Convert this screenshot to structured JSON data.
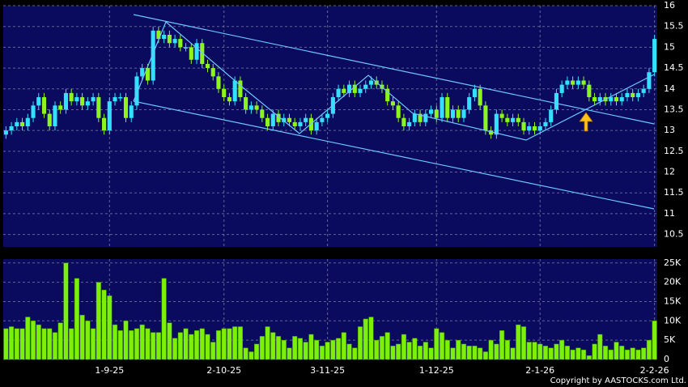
{
  "chart_data": [
    {
      "type": "candlestick",
      "up_color": "#33e0ff",
      "down_color": "#8cf51e",
      "grid": true,
      "categories": [
        null,
        null,
        null,
        null,
        null,
        null,
        null,
        null,
        null,
        null,
        null,
        null,
        null,
        null,
        null,
        null,
        null,
        null,
        null,
        "1-9-25",
        null,
        null,
        null,
        null,
        null,
        null,
        null,
        null,
        null,
        null,
        null,
        null,
        null,
        null,
        null,
        null,
        null,
        null,
        null,
        null,
        "2-10-25",
        null,
        null,
        null,
        null,
        null,
        null,
        null,
        null,
        null,
        null,
        null,
        null,
        null,
        null,
        null,
        null,
        null,
        null,
        "3-11-25",
        null,
        null,
        null,
        null,
        null,
        null,
        null,
        null,
        null,
        null,
        null,
        null,
        null,
        null,
        null,
        null,
        null,
        null,
        null,
        "1-12-25",
        null,
        null,
        null,
        null,
        null,
        null,
        null,
        null,
        null,
        null,
        null,
        null,
        null,
        null,
        null,
        null,
        null,
        null,
        "2-1-26",
        null,
        null,
        null,
        null,
        null,
        null,
        null,
        null,
        null,
        null,
        null,
        null,
        null,
        null,
        null,
        null,
        null,
        null,
        null,
        null,
        "2-2-26"
      ],
      "open": [
        12.9,
        13.0,
        13.1,
        13.2,
        13.1,
        13.3,
        13.6,
        13.8,
        13.4,
        13.1,
        13.6,
        13.5,
        13.9,
        13.7,
        13.8,
        13.6,
        13.7,
        13.8,
        13.3,
        13.0,
        13.7,
        13.8,
        13.8,
        13.3,
        13.6,
        14.3,
        14.5,
        14.2,
        15.4,
        15.2,
        15.3,
        15.1,
        15.2,
        15.0,
        15.0,
        14.7,
        15.1,
        14.6,
        14.5,
        14.3,
        14.0,
        13.8,
        13.7,
        14.2,
        13.8,
        13.5,
        13.6,
        13.5,
        13.3,
        13.1,
        13.4,
        13.2,
        13.3,
        13.2,
        13.1,
        13.2,
        13.3,
        13.0,
        13.2,
        13.3,
        13.4,
        13.8,
        14.0,
        13.9,
        14.1,
        13.9,
        14.0,
        14.1,
        14.2,
        14.1,
        14.0,
        13.7,
        13.6,
        13.3,
        13.1,
        13.2,
        13.4,
        13.2,
        13.4,
        13.5,
        13.3,
        13.8,
        13.3,
        13.5,
        13.3,
        13.5,
        13.8,
        14.0,
        13.6,
        13.0,
        12.9,
        13.4,
        13.3,
        13.2,
        13.3,
        13.2,
        13.0,
        13.1,
        13.0,
        13.1,
        13.2,
        13.5,
        13.9,
        14.1,
        14.2,
        14.1,
        14.2,
        14.1,
        13.8,
        13.7,
        13.8,
        13.7,
        13.8,
        13.7,
        13.8,
        13.9,
        13.8,
        13.9,
        14.0,
        14.4
      ],
      "high": [
        13.1,
        13.2,
        13.3,
        13.3,
        13.4,
        13.7,
        13.9,
        13.9,
        13.5,
        13.7,
        13.7,
        14.0,
        14.0,
        13.9,
        13.9,
        13.8,
        13.9,
        13.9,
        13.4,
        13.8,
        13.9,
        13.9,
        13.9,
        13.7,
        14.4,
        14.6,
        14.6,
        15.5,
        15.5,
        15.4,
        15.4,
        15.3,
        15.3,
        15.1,
        15.1,
        15.2,
        15.2,
        14.7,
        14.6,
        14.4,
        14.1,
        13.9,
        14.3,
        14.3,
        13.9,
        13.7,
        13.7,
        13.6,
        13.4,
        13.5,
        13.5,
        13.4,
        13.4,
        13.3,
        13.3,
        13.4,
        13.4,
        13.3,
        13.4,
        13.5,
        13.9,
        14.1,
        14.1,
        14.2,
        14.2,
        14.1,
        14.2,
        14.3,
        14.3,
        14.2,
        14.1,
        13.8,
        13.7,
        13.4,
        13.3,
        13.5,
        13.5,
        13.5,
        13.6,
        13.6,
        13.9,
        13.9,
        13.6,
        13.6,
        13.6,
        13.9,
        14.1,
        14.1,
        13.7,
        13.1,
        13.5,
        13.5,
        13.4,
        13.4,
        13.4,
        13.3,
        13.2,
        13.2,
        13.2,
        13.3,
        13.6,
        14.0,
        14.2,
        14.3,
        14.3,
        14.3,
        14.3,
        14.2,
        13.9,
        13.9,
        13.9,
        13.9,
        13.9,
        13.9,
        14.0,
        14.0,
        14.0,
        14.1,
        14.5,
        15.3
      ],
      "low": [
        12.8,
        12.9,
        13.0,
        13.0,
        13.0,
        13.2,
        13.5,
        13.3,
        13.0,
        13.0,
        13.4,
        13.4,
        13.6,
        13.6,
        13.5,
        13.5,
        13.6,
        13.2,
        12.9,
        12.9,
        13.6,
        13.7,
        13.2,
        13.2,
        13.5,
        14.2,
        14.1,
        14.1,
        15.1,
        15.1,
        15.0,
        15.0,
        14.9,
        14.9,
        14.6,
        14.6,
        14.5,
        14.4,
        14.2,
        13.9,
        13.7,
        13.6,
        13.6,
        13.7,
        13.4,
        13.4,
        13.4,
        13.2,
        13.0,
        13.0,
        13.1,
        13.1,
        13.1,
        13.0,
        13.0,
        13.1,
        12.9,
        12.9,
        13.1,
        13.2,
        13.3,
        13.7,
        13.8,
        13.8,
        13.8,
        13.8,
        13.9,
        14.0,
        14.0,
        13.9,
        13.6,
        13.5,
        13.2,
        13.0,
        13.0,
        13.1,
        13.1,
        13.1,
        13.3,
        13.2,
        13.2,
        13.2,
        13.2,
        13.2,
        13.2,
        13.4,
        13.7,
        13.5,
        12.9,
        12.8,
        12.8,
        13.2,
        13.1,
        13.1,
        13.1,
        12.9,
        12.9,
        12.9,
        12.9,
        13.0,
        13.1,
        13.4,
        13.8,
        14.0,
        14.0,
        14.0,
        14.0,
        13.7,
        13.6,
        13.6,
        13.6,
        13.6,
        13.6,
        13.6,
        13.7,
        13.7,
        13.7,
        13.8,
        13.9,
        14.3
      ],
      "close": [
        13.0,
        13.1,
        13.2,
        13.1,
        13.3,
        13.6,
        13.8,
        13.4,
        13.1,
        13.6,
        13.5,
        13.9,
        13.7,
        13.8,
        13.6,
        13.7,
        13.8,
        13.3,
        13.0,
        13.7,
        13.8,
        13.8,
        13.3,
        13.6,
        14.3,
        14.5,
        14.2,
        15.4,
        15.2,
        15.3,
        15.1,
        15.2,
        15.0,
        15.0,
        14.7,
        15.1,
        14.6,
        14.5,
        14.3,
        14.0,
        13.8,
        13.7,
        14.2,
        13.8,
        13.5,
        13.6,
        13.5,
        13.3,
        13.1,
        13.4,
        13.2,
        13.3,
        13.2,
        13.1,
        13.2,
        13.3,
        13.0,
        13.2,
        13.3,
        13.4,
        13.8,
        14.0,
        13.9,
        14.1,
        13.9,
        14.0,
        14.1,
        14.2,
        14.1,
        14.0,
        13.7,
        13.6,
        13.3,
        13.1,
        13.2,
        13.4,
        13.2,
        13.4,
        13.5,
        13.3,
        13.8,
        13.3,
        13.5,
        13.3,
        13.5,
        13.8,
        14.0,
        13.6,
        13.0,
        12.9,
        13.4,
        13.3,
        13.2,
        13.3,
        13.2,
        13.0,
        13.1,
        13.0,
        13.1,
        13.2,
        13.5,
        13.9,
        14.1,
        14.2,
        14.1,
        14.2,
        14.1,
        13.8,
        13.7,
        13.8,
        13.7,
        13.8,
        13.7,
        13.8,
        13.9,
        13.8,
        13.9,
        14.0,
        14.4,
        15.2
      ],
      "ylim": [
        10.2,
        16
      ],
      "yticks": [
        10.5,
        11,
        11.5,
        12,
        12.5,
        13,
        13.5,
        14,
        14.5,
        15,
        15.5,
        16
      ]
    },
    {
      "type": "bar",
      "color": "#7cf00a",
      "grid": true,
      "values": [
        8000,
        8500,
        8000,
        8000,
        11000,
        10000,
        9000,
        8000,
        8000,
        7000,
        9500,
        25000,
        8000,
        21000,
        11500,
        10000,
        8000,
        20000,
        18000,
        16500,
        9000,
        7500,
        10000,
        7500,
        8000,
        9000,
        8000,
        7000,
        7000,
        21000,
        9500,
        5500,
        7000,
        8000,
        6500,
        7500,
        8000,
        6500,
        4500,
        7500,
        8000,
        8000,
        8500,
        8500,
        3000,
        2000,
        4000,
        6000,
        8500,
        7000,
        6000,
        5000,
        3000,
        6000,
        5500,
        4500,
        6500,
        5000,
        3500,
        4500,
        5000,
        5500,
        7000,
        4000,
        3000,
        8500,
        10500,
        11000,
        5000,
        6000,
        7000,
        3500,
        4000,
        6500,
        4500,
        5500,
        3500,
        4500,
        3000,
        8000,
        7000,
        5000,
        3000,
        5000,
        4000,
        3500,
        3500,
        3000,
        2000,
        5000,
        4000,
        7500,
        5000,
        3000,
        9000,
        8500,
        4500,
        4500,
        4000,
        3500,
        3000,
        4000,
        5000,
        3500,
        2500,
        3000,
        2500,
        1000,
        4000,
        6500,
        3500,
        2500,
        4500,
        3500,
        2500,
        3000,
        2500,
        3000,
        5000,
        10000
      ],
      "ylim": [
        0,
        26000
      ],
      "yticks": [
        0,
        {
          "value": 5000,
          "label": "5K"
        },
        {
          "value": 10000,
          "label": "10K"
        },
        {
          "value": 15000,
          "label": "15K"
        },
        {
          "value": 20000,
          "label": "20K"
        },
        {
          "value": 25000,
          "label": "25K"
        }
      ]
    }
  ],
  "copyright": "Copyright by AASTOCKS.com Ltd."
}
